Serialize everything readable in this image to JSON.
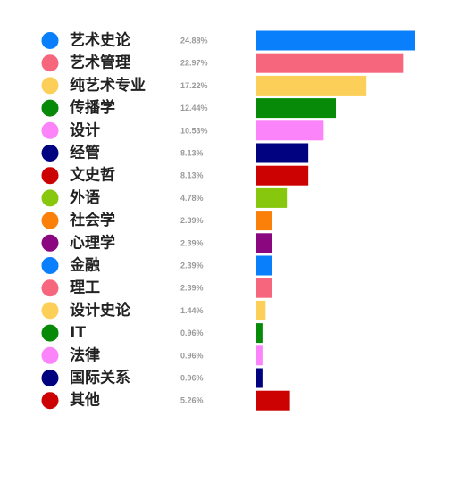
{
  "chart_data": {
    "type": "bar",
    "orientation": "horizontal",
    "title": "",
    "xlabel": "",
    "ylabel": "",
    "legend": "left",
    "grid": false,
    "xlim": [
      0,
      24.88
    ],
    "categories": [
      "艺术史论",
      "艺术管理",
      "纯艺术专业",
      "传播学",
      "设计",
      "经管",
      "文史哲",
      "外语",
      "社会学",
      "心理学",
      "金融",
      "理工",
      "设计史论",
      "IT",
      "法律",
      "国际关系",
      "其他"
    ],
    "values": [
      24.88,
      22.97,
      17.22,
      12.44,
      10.53,
      8.13,
      8.13,
      4.78,
      2.39,
      2.39,
      2.39,
      2.39,
      1.44,
      0.96,
      0.96,
      0.96,
      5.26
    ],
    "value_labels": [
      "24.88%",
      "22.97%",
      "17.22%",
      "12.44%",
      "10.53%",
      "8.13%",
      "8.13%",
      "4.78%",
      "2.39%",
      "2.39%",
      "2.39%",
      "2.39%",
      "1.44%",
      "0.96%",
      "0.96%",
      "0.96%",
      "5.26%"
    ],
    "colors": [
      "#0a7ffb",
      "#f6677e",
      "#fcd058",
      "#078a07",
      "#fb84fb",
      "#010280",
      "#cc0102",
      "#87c80e",
      "#fb800a",
      "#8a0780",
      "#0a7ffb",
      "#f6677e",
      "#fcd058",
      "#078a07",
      "#fb84fb",
      "#010280",
      "#cc0102"
    ]
  }
}
